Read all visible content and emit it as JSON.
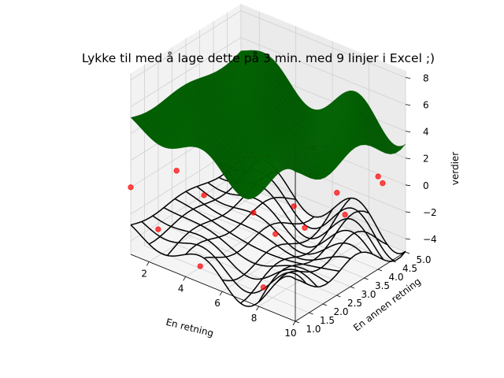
{
  "chart_data": {
    "type": "3d-surface-wireframe-scatter",
    "title": "Lykke til med å lage dette på 3 min. med 9 linjer i Excel ;)",
    "xlabel": "En retning",
    "ylabel": "En annen retning",
    "zlabel": "verdier",
    "xlim": [
      1,
      10
    ],
    "ylim": [
      1,
      5
    ],
    "zlim": [
      -5,
      8.5
    ],
    "x_ticks": [
      2,
      4,
      6,
      8,
      10
    ],
    "y_ticks": [
      1.0,
      1.5,
      2.0,
      2.5,
      3.0,
      3.5,
      4.0,
      4.5,
      5.0
    ],
    "z_ticks": [
      -4,
      -2,
      0,
      2,
      4,
      6,
      8
    ],
    "x_tick_labels": [
      "2",
      "4",
      "6",
      "8",
      "10"
    ],
    "y_tick_labels": [
      "1.0",
      "1.5",
      "2.0",
      "2.5",
      "3.0",
      "3.5",
      "4.0",
      "4.5",
      "5.0"
    ],
    "z_tick_labels": [
      "−4",
      "−2",
      "0",
      "2",
      "4",
      "6",
      "8"
    ],
    "grid": true,
    "series": [
      {
        "kind": "surface",
        "color": "#008000",
        "z_offset": 4.5
      },
      {
        "kind": "wireframe",
        "color": "#000000",
        "z_offset": -3.5
      },
      {
        "kind": "scatter",
        "color": "#ff0000",
        "points": [
          {
            "x": 1.0,
            "y": 1.0,
            "z": 0.0
          },
          {
            "x": 2.0,
            "y": 2.0,
            "z": 0.5
          },
          {
            "x": 3.0,
            "y": 3.0,
            "z": 0.2
          },
          {
            "x": 4.0,
            "y": 4.0,
            "z": 0.1
          },
          {
            "x": 5.0,
            "y": 5.0,
            "z": 0.0
          },
          {
            "x": 2.5,
            "y": 1.0,
            "z": -2.3
          },
          {
            "x": 3.5,
            "y": 2.0,
            "z": -0.5
          },
          {
            "x": 5.0,
            "y": 2.8,
            "z": -2.0
          },
          {
            "x": 6.0,
            "y": 3.6,
            "z": -2.0
          },
          {
            "x": 7.0,
            "y": 4.5,
            "z": -1.6
          },
          {
            "x": 8.5,
            "y": 5.0,
            "z": -0.2
          },
          {
            "x": 4.5,
            "y": 1.2,
            "z": -4.2
          },
          {
            "x": 6.5,
            "y": 2.6,
            "z": -2.5
          },
          {
            "x": 7.5,
            "y": 3.0,
            "z": -2.0
          },
          {
            "x": 8.5,
            "y": 3.8,
            "z": -1.5
          },
          {
            "x": 9.5,
            "y": 4.5,
            "z": 0.5
          },
          {
            "x": 7.5,
            "y": 1.5,
            "z": -4.5
          }
        ]
      }
    ]
  }
}
